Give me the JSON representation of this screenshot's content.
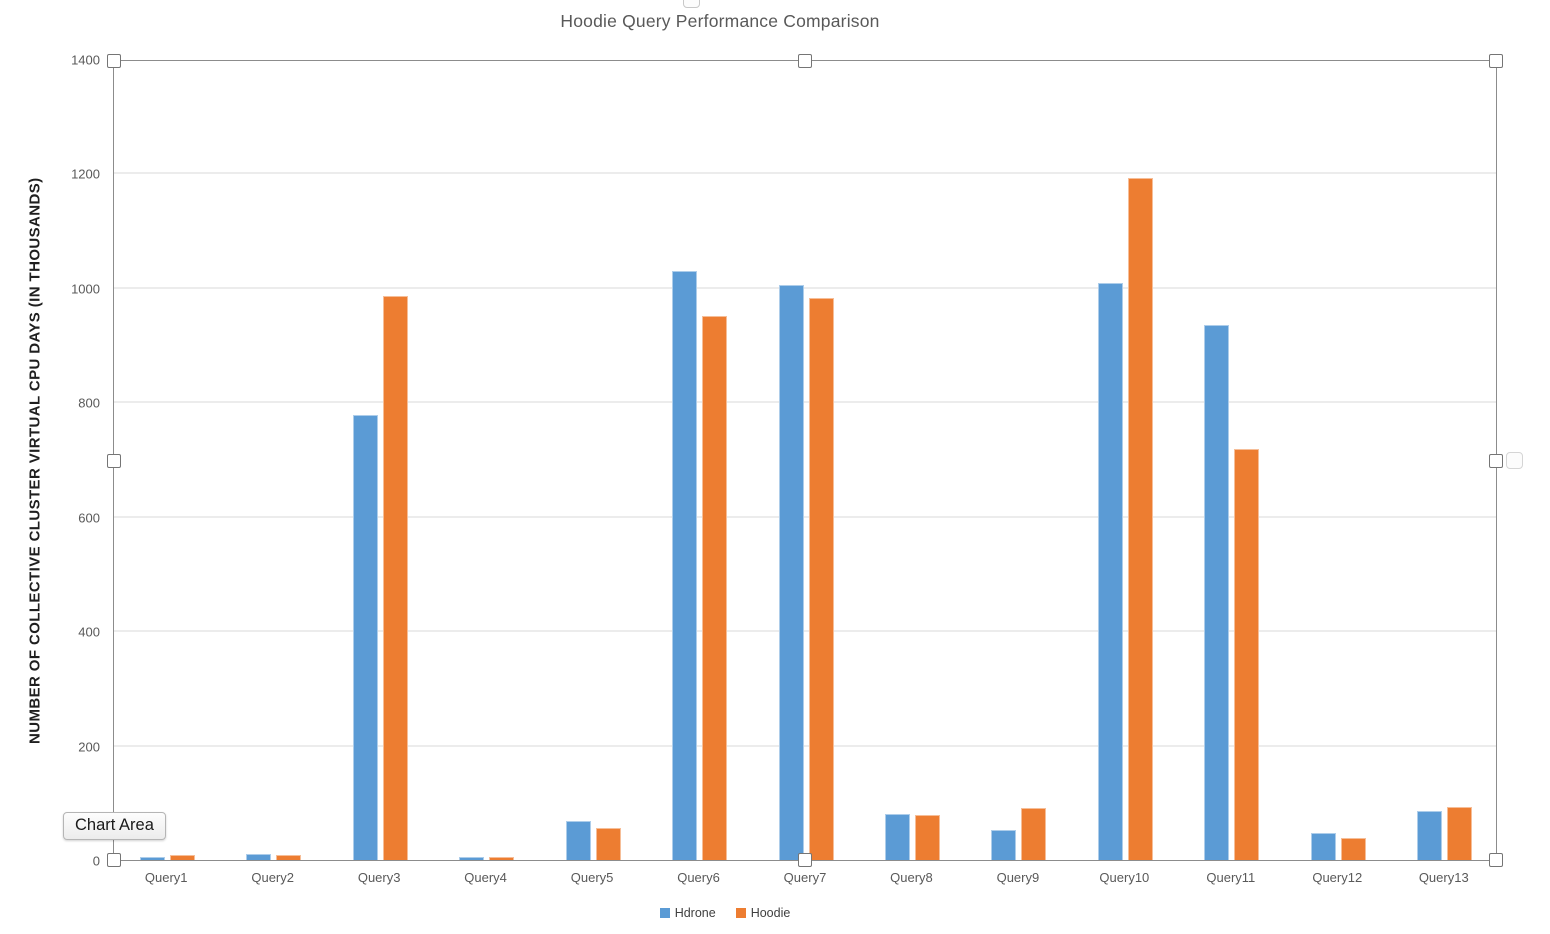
{
  "chart_data": {
    "type": "bar",
    "title": "Hoodie Query Performance Comparison",
    "xlabel": "",
    "ylabel": "NUMBER OF COLLECTIVE CLUSTER VIRTUAL CPU DAYS (IN THOUSANDS)",
    "categories": [
      "Query1",
      "Query2",
      "Query3",
      "Query4",
      "Query5",
      "Query6",
      "Query7",
      "Query8",
      "Query9",
      "Query10",
      "Query11",
      "Query12",
      "Query13"
    ],
    "series": [
      {
        "name": "Hdrone",
        "color": "#5B9BD5",
        "values": [
          5,
          10,
          778,
          5,
          68,
          1030,
          1005,
          80,
          52,
          1008,
          935,
          47,
          85
        ]
      },
      {
        "name": "Hoodie",
        "color": "#ED7D31",
        "values": [
          9,
          9,
          985,
          6,
          56,
          950,
          983,
          79,
          91,
          1192,
          718,
          38,
          93
        ]
      }
    ],
    "ylim": [
      0,
      1400
    ],
    "yticks": [
      0,
      200,
      400,
      600,
      800,
      1000,
      1200,
      1400
    ],
    "grid": true,
    "legend_position": "bottom"
  },
  "tooltip": {
    "label": "Chart Area"
  },
  "selection": {
    "state": "plot-area-selected",
    "handle_count": 8
  }
}
